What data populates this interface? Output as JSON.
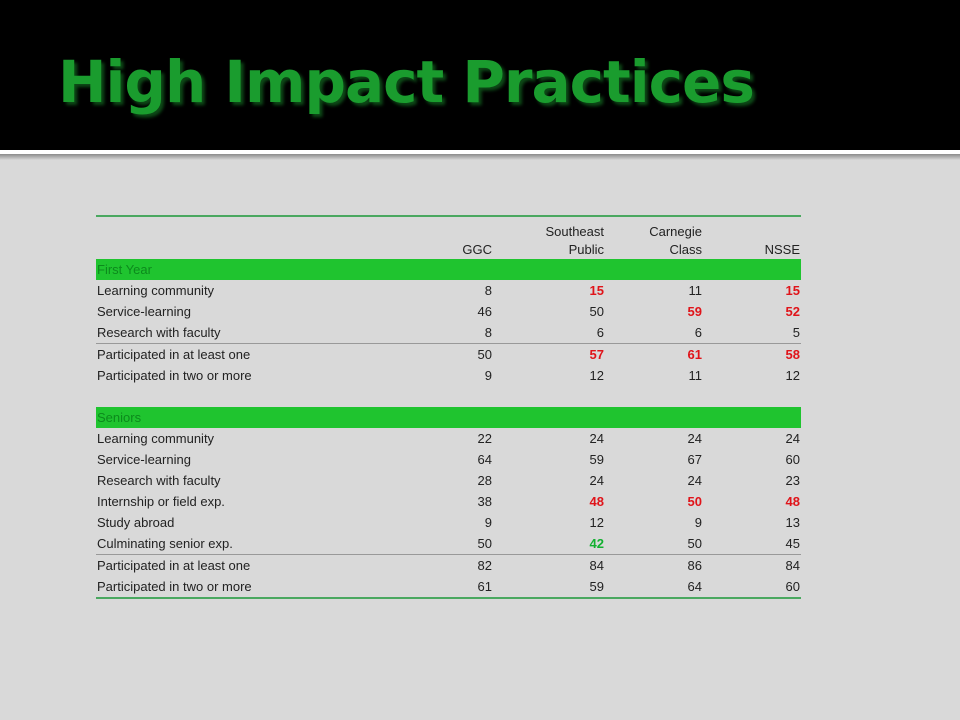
{
  "slide": {
    "title": "High Impact Practices"
  },
  "table": {
    "headers": [
      "",
      "GGC",
      "Southeast Public",
      "Carnegie Class",
      "NSSE"
    ],
    "header_lines": [
      [
        ""
      ],
      [
        "GGC"
      ],
      [
        "Southeast",
        "Public"
      ],
      [
        "Carnegie",
        "Class"
      ],
      [
        "NSSE"
      ]
    ],
    "sections": [
      {
        "label": "First Year",
        "rows": [
          {
            "label": "Learning community",
            "values": [
              "8",
              "15",
              "11",
              "15"
            ],
            "styles": [
              "",
              "red",
              "",
              "red"
            ]
          },
          {
            "label": "Service-learning",
            "values": [
              "46",
              "50",
              "59",
              "52"
            ],
            "styles": [
              "",
              "",
              "red",
              "red"
            ]
          },
          {
            "label": "Research with faculty",
            "values": [
              "8",
              "6",
              "6",
              "5"
            ],
            "styles": [
              "",
              "",
              "",
              ""
            ]
          },
          {
            "label": "Participated in at least one",
            "values": [
              "50",
              "57",
              "61",
              "58"
            ],
            "styles": [
              "",
              "red",
              "red",
              "red"
            ],
            "sep": true
          },
          {
            "label": "Participated in two or more",
            "values": [
              "9",
              "12",
              "11",
              "12"
            ],
            "styles": [
              "",
              "",
              "",
              ""
            ]
          }
        ]
      },
      {
        "label": "Seniors",
        "rows": [
          {
            "label": "Learning community",
            "values": [
              "22",
              "24",
              "24",
              "24"
            ],
            "styles": [
              "",
              "",
              "",
              ""
            ]
          },
          {
            "label": "Service-learning",
            "values": [
              "64",
              "59",
              "67",
              "60"
            ],
            "styles": [
              "",
              "",
              "",
              ""
            ]
          },
          {
            "label": "Research with faculty",
            "values": [
              "28",
              "24",
              "24",
              "23"
            ],
            "styles": [
              "",
              "",
              "",
              ""
            ]
          },
          {
            "label": "Internship or field exp.",
            "values": [
              "38",
              "48",
              "50",
              "48"
            ],
            "styles": [
              "",
              "red",
              "red",
              "red"
            ]
          },
          {
            "label": "Study abroad",
            "values": [
              "9",
              "12",
              "9",
              "13"
            ],
            "styles": [
              "",
              "",
              "",
              ""
            ]
          },
          {
            "label": "Culminating senior exp.",
            "values": [
              "50",
              "42",
              "50",
              "45"
            ],
            "styles": [
              "",
              "green",
              "",
              ""
            ]
          },
          {
            "label": "Participated in at least one",
            "values": [
              "82",
              "84",
              "86",
              "84"
            ],
            "styles": [
              "",
              "",
              "",
              ""
            ],
            "sep": true
          },
          {
            "label": "Participated in two or more",
            "values": [
              "61",
              "59",
              "64",
              "60"
            ],
            "styles": [
              "",
              "",
              "",
              ""
            ],
            "bottom": true
          }
        ]
      }
    ],
    "colors": {
      "highlight_red": "#e0141a",
      "highlight_green": "#12b030",
      "section_fill": "#1fc42f",
      "title_green": "#1a9c2e"
    }
  }
}
